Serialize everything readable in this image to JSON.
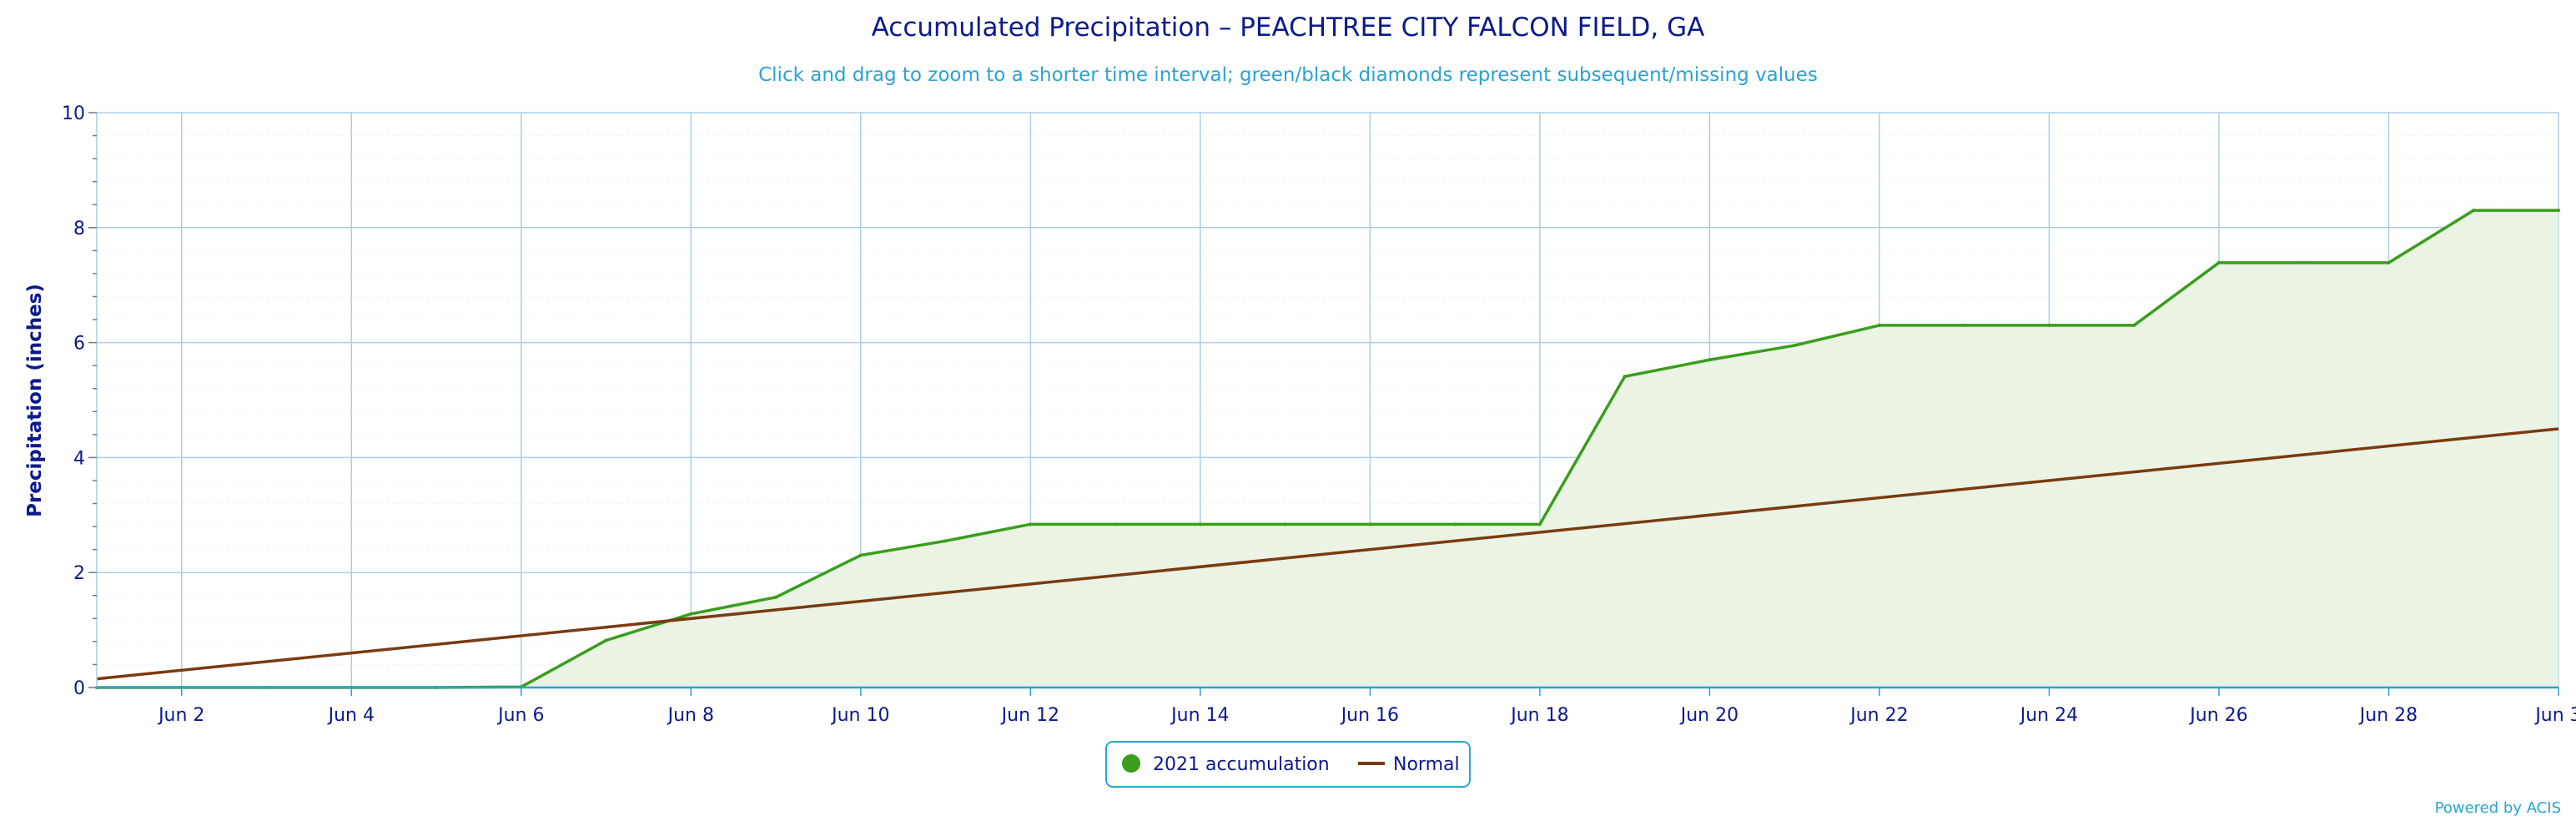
{
  "chart_data": {
    "type": "area",
    "title": "Accumulated Precipitation – PEACHTREE CITY FALCON FIELD, GA",
    "subtitle": "Click and drag to zoom to a shorter time interval; green/black diamonds represent subsequent/missing values",
    "ylabel": "Precipitation (inches)",
    "xlabel": "",
    "ylim": [
      0,
      10
    ],
    "xlim": [
      1,
      30
    ],
    "yticks": [
      "0",
      "2",
      "4",
      "6",
      "8",
      "10"
    ],
    "xtick_values": [
      2,
      4,
      6,
      8,
      10,
      12,
      14,
      16,
      18,
      20,
      22,
      24,
      26,
      28,
      30
    ],
    "xtick_labels": [
      "Jun 2",
      "Jun 4",
      "Jun 6",
      "Jun 8",
      "Jun 10",
      "Jun 12",
      "Jun 14",
      "Jun 16",
      "Jun 18",
      "Jun 20",
      "Jun 22",
      "Jun 24",
      "Jun 26",
      "Jun 28",
      "Jun 3"
    ],
    "grid": true,
    "legend_position": "bottom-center",
    "series": [
      {
        "name": "2021 accumulation",
        "color": "#3a9d1c",
        "fill": "#eaf3e4",
        "x": [
          1,
          2,
          3,
          4,
          5,
          6,
          7,
          8,
          9,
          10,
          11,
          12,
          13,
          14,
          15,
          16,
          17,
          18,
          19,
          20,
          21,
          22,
          23,
          24,
          25,
          26,
          27,
          28,
          29,
          30
        ],
        "values": [
          0.0,
          0.0,
          0.0,
          0.0,
          0.0,
          0.01,
          0.82,
          1.28,
          1.57,
          2.3,
          2.55,
          2.84,
          2.84,
          2.84,
          2.84,
          2.84,
          2.84,
          2.84,
          5.41,
          5.7,
          5.95,
          6.3,
          6.3,
          6.3,
          6.3,
          7.39,
          7.39,
          7.39,
          8.3,
          8.3
        ]
      },
      {
        "name": "Normal",
        "color": "#7a3a12",
        "x": [
          1,
          30
        ],
        "values": [
          0.15,
          4.5
        ]
      }
    ]
  },
  "legend": {
    "items": [
      {
        "label": "2021 accumulation",
        "color": "#3a9d1c"
      },
      {
        "label": "Normal",
        "color": "#7a3a12"
      }
    ]
  },
  "credit": "Powered by ACIS"
}
